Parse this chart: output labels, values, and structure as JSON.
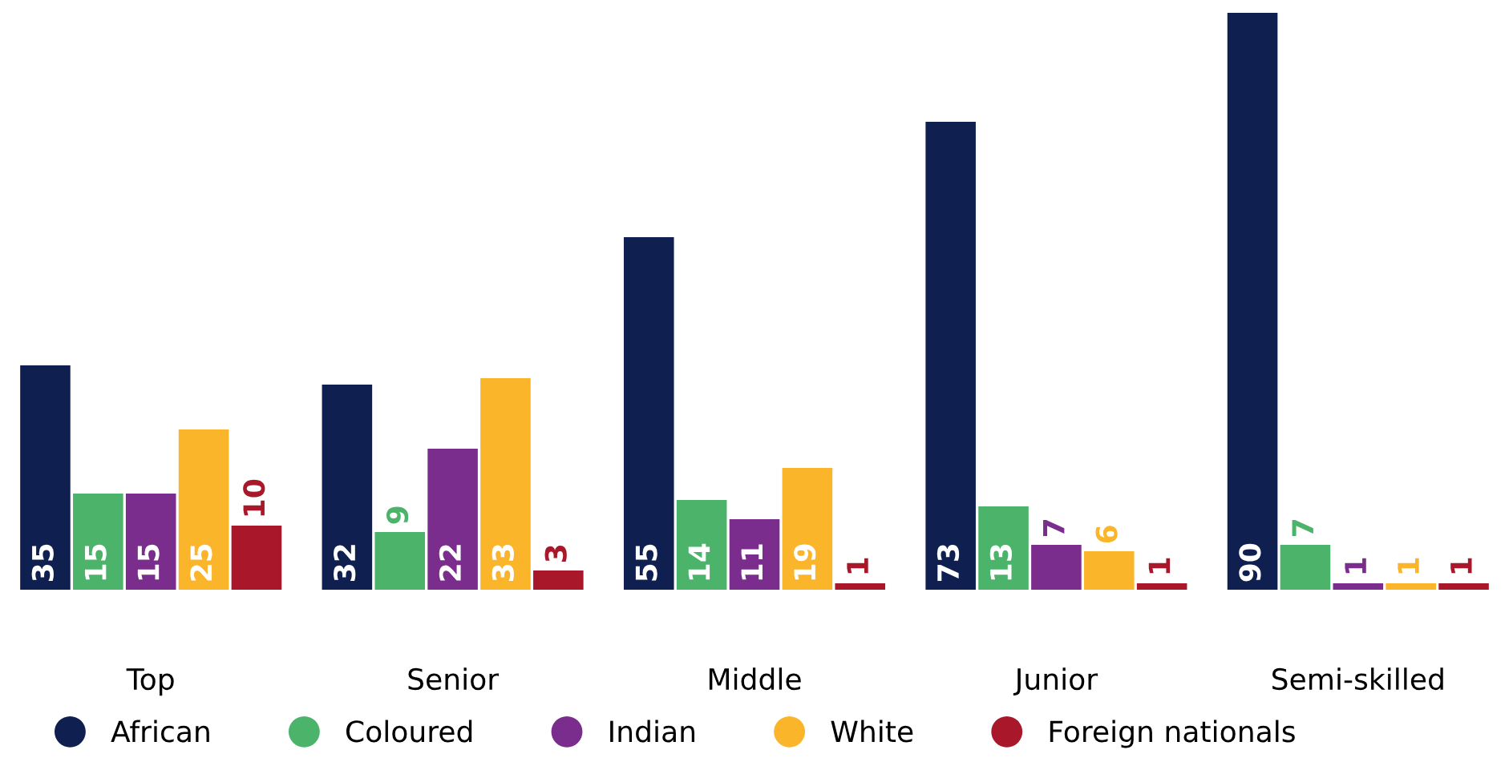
{
  "chart_data": {
    "type": "bar",
    "categories": [
      "Top",
      "Senior",
      "Middle",
      "Junior",
      "Semi-skilled"
    ],
    "series": [
      {
        "name": "African",
        "color": "#0f2050",
        "values": [
          35,
          32,
          55,
          73,
          90
        ]
      },
      {
        "name": "Coloured",
        "color": "#4cb36a",
        "values": [
          15,
          9,
          14,
          13,
          7
        ]
      },
      {
        "name": "Indian",
        "color": "#7a2d8c",
        "values": [
          15,
          22,
          11,
          7,
          1
        ]
      },
      {
        "name": "White",
        "color": "#fbb52a",
        "values": [
          25,
          33,
          19,
          6,
          1
        ]
      },
      {
        "name": "Foreign nationals",
        "color": "#a8182a",
        "values": [
          10,
          3,
          1,
          1,
          1
        ]
      }
    ],
    "data_labels": true,
    "legend": "bottom",
    "grid": false
  }
}
